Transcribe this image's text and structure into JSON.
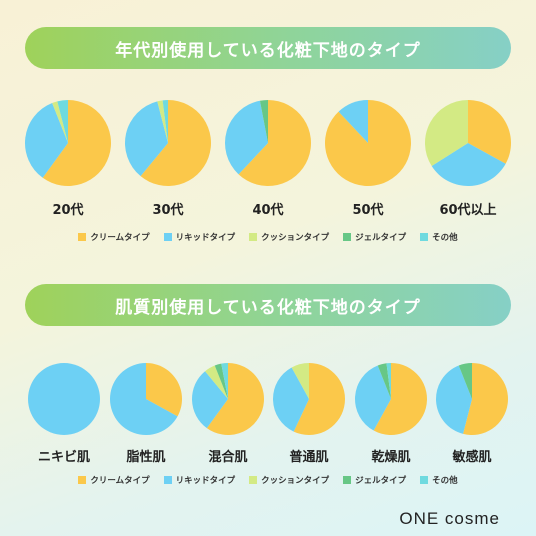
{
  "colors": {
    "cream": "#fbc84a",
    "liquid": "#6dd0f4",
    "cushion": "#d3ea84",
    "gel": "#67c786",
    "other": "#6fdadf"
  },
  "legend": [
    {
      "key": "cream",
      "label": "クリームタイプ"
    },
    {
      "key": "liquid",
      "label": "リキッドタイプ"
    },
    {
      "key": "cushion",
      "label": "クッションタイプ"
    },
    {
      "key": "gel",
      "label": "ジェルタイプ"
    },
    {
      "key": "other",
      "label": "その他"
    }
  ],
  "brand": {
    "logo": "ONE cosme"
  },
  "chart_data": [
    {
      "type": "pie",
      "title": "年代別使用している化粧下地のタイプ",
      "categories": [
        "20代",
        "30代",
        "40代",
        "50代",
        "60代以上"
      ],
      "series_names": [
        "クリームタイプ",
        "リキッドタイプ",
        "クッションタイプ",
        "ジェルタイプ",
        "その他"
      ],
      "values": [
        [
          60,
          34,
          2,
          0,
          4
        ],
        [
          61,
          35,
          2,
          0,
          2
        ],
        [
          62,
          35,
          0,
          3,
          0
        ],
        [
          88,
          12,
          0,
          0,
          0
        ],
        [
          33,
          33,
          34,
          0,
          0
        ]
      ]
    },
    {
      "type": "pie",
      "title": "肌質別使用している化粧下地のタイプ",
      "categories": [
        "ニキビ肌",
        "脂性肌",
        "混合肌",
        "普通肌",
        "乾燥肌",
        "敏感肌"
      ],
      "series_names": [
        "クリームタイプ",
        "リキッドタイプ",
        "クッションタイプ",
        "ジェルタイプ",
        "その他"
      ],
      "values": [
        [
          0,
          100,
          0,
          0,
          0
        ],
        [
          33,
          67,
          0,
          0,
          0
        ],
        [
          60,
          29,
          5,
          3,
          3
        ],
        [
          57,
          35,
          8,
          0,
          0
        ],
        [
          58,
          36,
          0,
          4,
          2
        ],
        [
          54,
          40,
          0,
          6,
          0
        ]
      ]
    }
  ]
}
